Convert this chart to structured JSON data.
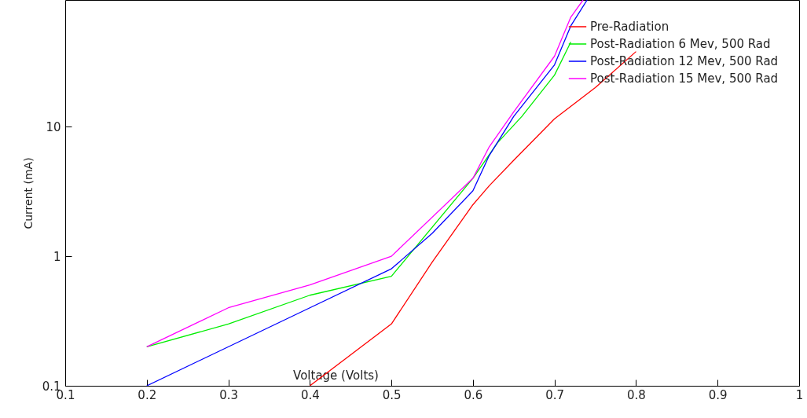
{
  "chart_data": {
    "type": "line",
    "xlabel": "Voltage (Volts)",
    "ylabel": "Current (mA)",
    "log": "y",
    "xlim": [
      0.1,
      1.0
    ],
    "xticks": [
      0.1,
      0.2,
      0.3,
      0.4,
      0.5,
      0.6,
      0.7,
      0.8,
      0.9,
      1
    ],
    "ylim": [
      0.1,
      95
    ],
    "yticks": [
      0.1,
      1,
      10
    ],
    "grid": false,
    "legend": "top right",
    "series": [
      {
        "name": "Pre-Radiation",
        "color": "#ff0000",
        "x": [
          0.4,
          0.5,
          0.55,
          0.6,
          0.62,
          0.65,
          0.7,
          0.75,
          0.8
        ],
        "values": [
          0.1,
          0.3,
          0.9,
          2.5,
          3.5,
          5.5,
          11.5,
          20,
          38
        ]
      },
      {
        "name": "Post-Radiation 6 Mev, 500 Rad",
        "color": "#00ee00",
        "x": [
          0.2,
          0.3,
          0.4,
          0.5,
          0.6,
          0.63,
          0.66,
          0.7,
          0.72
        ],
        "values": [
          0.2,
          0.3,
          0.5,
          0.7,
          4,
          7.5,
          12,
          25,
          45
        ]
      },
      {
        "name": "Post-Radiation 12 Mev, 500 Rad",
        "color": "#0000ff",
        "x": [
          0.2,
          0.4,
          0.5,
          0.55,
          0.6,
          0.62,
          0.65,
          0.7,
          0.72,
          0.74
        ],
        "values": [
          0.1,
          0.4,
          0.8,
          1.5,
          3.2,
          6,
          12,
          30,
          60,
          95
        ]
      },
      {
        "name": "Post-Radiation 15  Mev, 500 Rad",
        "color": "#ff00ff",
        "x": [
          0.2,
          0.3,
          0.4,
          0.5,
          0.6,
          0.62,
          0.65,
          0.7,
          0.72,
          0.735
        ],
        "values": [
          0.2,
          0.4,
          0.6,
          1.0,
          4,
          7,
          13,
          35,
          70,
          95
        ]
      }
    ]
  }
}
